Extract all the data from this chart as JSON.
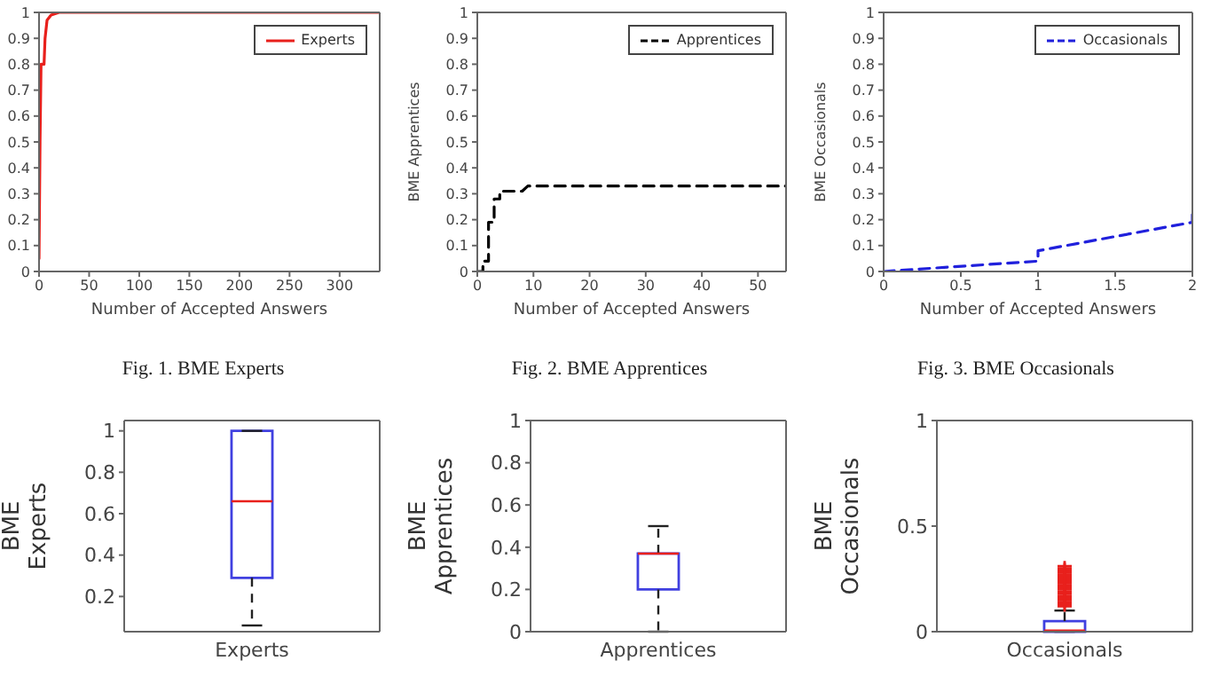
{
  "chart_data": [
    {
      "type": "line",
      "xlabel": "Number of Accepted Answers",
      "annotations": [
        "Fig. 1. BME Experts"
      ],
      "xlim": [
        0,
        340
      ],
      "xticks": [
        0,
        50,
        100,
        150,
        200,
        250,
        300
      ],
      "ylim": [
        0,
        1
      ],
      "yticks": [
        0,
        0.1,
        0.2,
        0.3,
        0.4,
        0.5,
        0.6,
        0.7,
        0.8,
        0.9,
        1
      ],
      "legend": "top right",
      "marker": "none",
      "line_style": "solid",
      "series": [
        {
          "name": "Experts",
          "color": "#e8201c",
          "x": [
            0,
            1,
            2,
            5,
            6,
            8,
            12,
            20,
            340
          ],
          "values": [
            0.05,
            0.5,
            0.8,
            0.8,
            0.9,
            0.97,
            0.99,
            1,
            1
          ]
        }
      ]
    },
    {
      "type": "line",
      "xlabel": "Number of Accepted Answers",
      "ylabel": "BME Apprentices",
      "annotations": [
        "Fig. 2. BME Apprentices"
      ],
      "xlim": [
        0,
        55
      ],
      "xticks": [
        0,
        10,
        20,
        30,
        40,
        50
      ],
      "ylim": [
        0,
        1
      ],
      "yticks": [
        0,
        0.1,
        0.2,
        0.3,
        0.4,
        0.5,
        0.6,
        0.7,
        0.8,
        0.9,
        1
      ],
      "legend": "top right",
      "marker": "none",
      "line_style": "dashed",
      "series": [
        {
          "name": "Apprentices",
          "color": "#000000",
          "x": [
            0,
            1,
            1,
            2,
            2,
            3,
            3,
            4,
            4,
            8,
            9,
            55
          ],
          "values": [
            0,
            0,
            0.04,
            0.04,
            0.19,
            0.19,
            0.28,
            0.28,
            0.31,
            0.31,
            0.33,
            0.33
          ]
        }
      ]
    },
    {
      "type": "line",
      "xlabel": "Number of Accepted Answers",
      "ylabel": "BME Occasionals",
      "annotations": [
        "Fig. 3. BME Occasionals"
      ],
      "xlim": [
        0,
        2
      ],
      "xticks": [
        0,
        0.5,
        1,
        1.5,
        2
      ],
      "ylim": [
        0,
        1
      ],
      "yticks": [
        0,
        0.1,
        0.2,
        0.3,
        0.4,
        0.5,
        0.6,
        0.7,
        0.8,
        0.9,
        1
      ],
      "legend": "top right",
      "marker": "none",
      "line_style": "dashed",
      "series": [
        {
          "name": "Occasionals",
          "color": "#2020dc",
          "x": [
            0,
            1,
            1,
            2,
            2
          ],
          "values": [
            0,
            0.04,
            0.08,
            0.19,
            0.22
          ]
        }
      ]
    },
    {
      "type": "box",
      "ylabel": "BME Experts",
      "categories": [
        "Experts"
      ],
      "color": "#4040e0",
      "ylim": [
        0.03,
        1.05
      ],
      "yticks": [
        0.2,
        0.4,
        0.6,
        0.8,
        1
      ],
      "boxes": [
        {
          "low": 0.06,
          "q1": 0.29,
          "median": 0.66,
          "q3": 1,
          "high": 1
        }
      ]
    },
    {
      "type": "box",
      "ylabel": "BME Apprentices",
      "categories": [
        "Apprentices"
      ],
      "color": "#4040e0",
      "ylim": [
        0,
        1
      ],
      "yticks": [
        0,
        0.2,
        0.4,
        0.6,
        0.8,
        1
      ],
      "boxes": [
        {
          "low": 0,
          "q1": 0.2,
          "median": 0.37,
          "q3": 0.37,
          "high": 0.5
        }
      ]
    },
    {
      "type": "box",
      "ylabel": "BME Occasionals",
      "categories": [
        "Occasionals"
      ],
      "color": "#4040e0",
      "ylim": [
        0,
        1
      ],
      "yticks": [
        0,
        0.5,
        1
      ],
      "boxes": [
        {
          "low": 0,
          "q1": 0,
          "median": 0.005,
          "q3": 0.05,
          "high": 0.1,
          "outliers": [
            0.12,
            0.13,
            0.14,
            0.15,
            0.16,
            0.17,
            0.18,
            0.19,
            0.2,
            0.21,
            0.22,
            0.23,
            0.24,
            0.25,
            0.26,
            0.27,
            0.28,
            0.29,
            0.3,
            0.31
          ]
        }
      ]
    }
  ]
}
